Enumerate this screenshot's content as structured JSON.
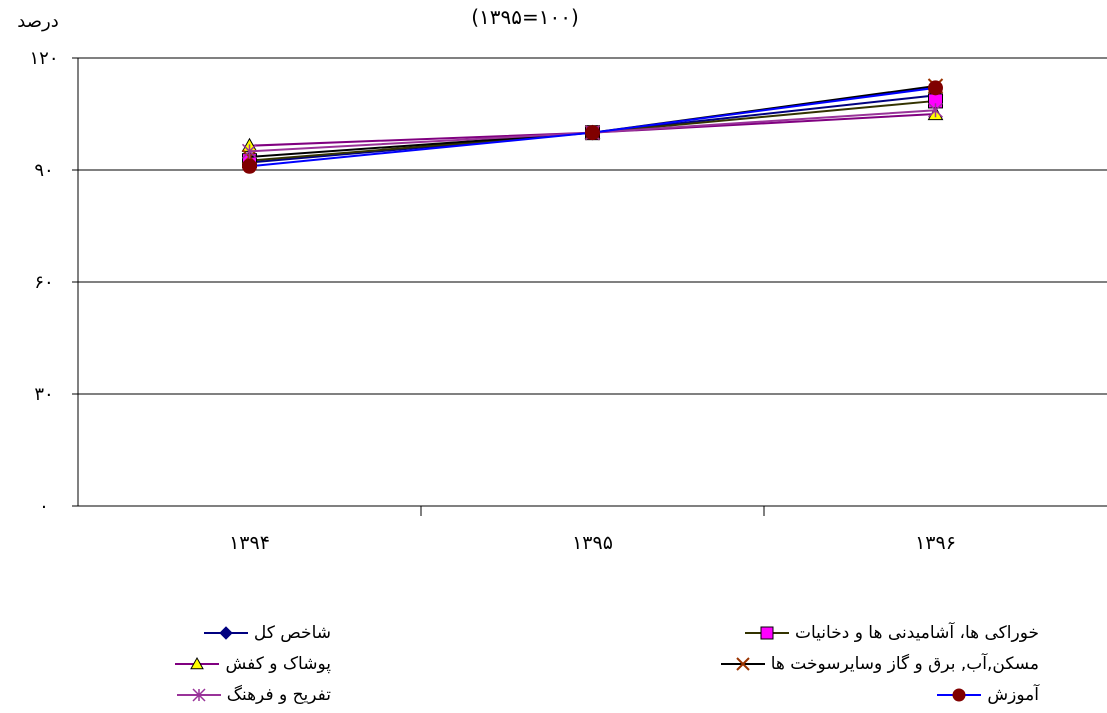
{
  "chart_data": {
    "type": "line",
    "subtitle": "(۱۳۹۵=۱۰۰)",
    "ylabel": "درصد",
    "xlabel": "",
    "categories": [
      "۱۳۹۴",
      "۱۳۹۵",
      "۱۳۹۶"
    ],
    "y_ticks": [
      "۰",
      "۳۰",
      "۶۰",
      "۹۰",
      "۱۲۰"
    ],
    "ylim": [
      0,
      120
    ],
    "grid": true,
    "legend_position": "bottom",
    "series": [
      {
        "name": "شاخص کل",
        "values": [
          92,
          100,
          110
        ],
        "color": "#000080",
        "marker": "diamond"
      },
      {
        "name": "خوراکی ها، آشامیدنی ها و دخانیات",
        "values": [
          92.5,
          100,
          108.5
        ],
        "color": "#333300",
        "marker": "square",
        "marker_fill": "#ff00ff"
      },
      {
        "name": "پوشاک و کفش",
        "values": [
          96.5,
          100,
          105
        ],
        "color": "#800080",
        "marker": "triangle",
        "marker_fill": "#ffff00"
      },
      {
        "name": "مسکن,آب, برق و گاز وسایرسوخت ها",
        "values": [
          93.5,
          100,
          112.5
        ],
        "color": "#993300",
        "line_color": "#000000",
        "marker": "x"
      },
      {
        "name": "تفریح و فرهنگ",
        "values": [
          95,
          100,
          106
        ],
        "color": "#993399",
        "marker": "star"
      },
      {
        "name": "آموزش",
        "values": [
          91,
          100,
          112
        ],
        "color": "#0000ff",
        "marker": "circle",
        "marker_fill": "#800000"
      }
    ]
  }
}
